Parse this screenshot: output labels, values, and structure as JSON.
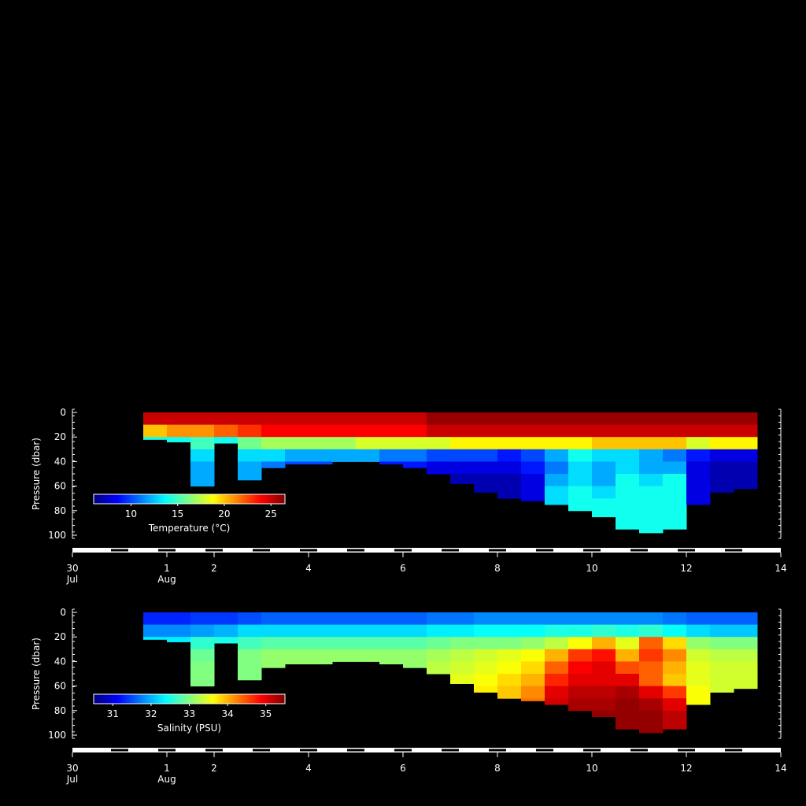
{
  "chart_data": [
    {
      "type": "section",
      "ylabel": "Pressure (dbar)",
      "colorbar_label": "Temperature (°C)",
      "xlim": [
        0,
        15
      ],
      "ylim": [
        0,
        100
      ],
      "clim": [
        6,
        26.5
      ],
      "xticks": [
        {
          "value": 0,
          "label": "30 Jul"
        },
        {
          "value": 2,
          "label": "1 Aug"
        },
        {
          "value": 3,
          "label": "2"
        },
        {
          "value": 5,
          "label": "4"
        },
        {
          "value": 7,
          "label": "6"
        },
        {
          "value": 9,
          "label": "8"
        },
        {
          "value": 11,
          "label": "10"
        },
        {
          "value": 13,
          "label": "12"
        },
        {
          "value": 15,
          "label": "14"
        }
      ],
      "yticks": [
        0,
        20,
        40,
        60,
        80,
        100
      ],
      "cticks": [
        10,
        15,
        20,
        25
      ],
      "x": [
        1.75,
        2.25,
        2.75,
        3.25,
        3.75,
        4.25,
        4.75,
        5.25,
        5.75,
        6.25,
        6.75,
        7.25,
        7.75,
        8.25,
        8.75,
        9.25,
        9.75,
        10.25,
        10.75,
        11.25,
        11.75,
        12.25,
        12.75,
        13.25,
        13.75,
        14.25
      ],
      "bottom": [
        22,
        24,
        60,
        25,
        55,
        45,
        42,
        42,
        40,
        40,
        42,
        45,
        50,
        58,
        65,
        70,
        72,
        75,
        80,
        85,
        95,
        98,
        95,
        75,
        65,
        62
      ],
      "depths": [
        0,
        10,
        20,
        30,
        40,
        50,
        60,
        70,
        80,
        90
      ],
      "values": [
        [
          25,
          20,
          14,
          null,
          null,
          null,
          null,
          null,
          null,
          null
        ],
        [
          25,
          21,
          14,
          null,
          null,
          null,
          null,
          null,
          null,
          null
        ],
        [
          25,
          21,
          15,
          13,
          12,
          12,
          null,
          null,
          null,
          null
        ],
        [
          25,
          22,
          14,
          null,
          null,
          null,
          null,
          null,
          null,
          null
        ],
        [
          25,
          23,
          16,
          13,
          12,
          12,
          null,
          null,
          null,
          null
        ],
        [
          25,
          24,
          17,
          13,
          11,
          null,
          null,
          null,
          null,
          null
        ],
        [
          25,
          24,
          17,
          12,
          10,
          null,
          null,
          null,
          null,
          null
        ],
        [
          25,
          24,
          17,
          12,
          10,
          null,
          null,
          null,
          null,
          null
        ],
        [
          25,
          24,
          17,
          12,
          null,
          null,
          null,
          null,
          null,
          null
        ],
        [
          25,
          24,
          18,
          12,
          null,
          null,
          null,
          null,
          null,
          null
        ],
        [
          25,
          24,
          18,
          11,
          9,
          null,
          null,
          null,
          null,
          null
        ],
        [
          25,
          24,
          18,
          11,
          9,
          null,
          null,
          null,
          null,
          null
        ],
        [
          26,
          25,
          18,
          10,
          8,
          null,
          null,
          null,
          null,
          null
        ],
        [
          26,
          25,
          19,
          10,
          8,
          7,
          null,
          null,
          null,
          null
        ],
        [
          26,
          25,
          19,
          10,
          8,
          7,
          7,
          null,
          null,
          null
        ],
        [
          26,
          25,
          19,
          9,
          8,
          7,
          7,
          null,
          null,
          null
        ],
        [
          26,
          25,
          19,
          10,
          9,
          8,
          8,
          8,
          null,
          null
        ],
        [
          26,
          25,
          19,
          12,
          11,
          12,
          13,
          13,
          null,
          null
        ],
        [
          26,
          25,
          19,
          14,
          13,
          13,
          14,
          14,
          null,
          null
        ],
        [
          26,
          25,
          20,
          13,
          12,
          12,
          13,
          14,
          14,
          null
        ],
        [
          26,
          25,
          20,
          13,
          13,
          14,
          14,
          14,
          14,
          14
        ],
        [
          26,
          25,
          20,
          12,
          12,
          13,
          14,
          14,
          14,
          14
        ],
        [
          26,
          25,
          20,
          11,
          12,
          14,
          14,
          14,
          14,
          14
        ],
        [
          26,
          25,
          18,
          9,
          8,
          8,
          8,
          8,
          null,
          null
        ],
        [
          26,
          25,
          19,
          8,
          7,
          7,
          7,
          null,
          null,
          null
        ],
        [
          26,
          25,
          19,
          8,
          7,
          7,
          7,
          null,
          null,
          null
        ]
      ]
    },
    {
      "type": "section",
      "ylabel": "Pressure (dbar)",
      "colorbar_label": "Salinity (PSU)",
      "xlim": [
        0,
        15
      ],
      "ylim": [
        0,
        100
      ],
      "clim": [
        30.5,
        35.5
      ],
      "xticks": [
        {
          "value": 0,
          "label": "30 Jul"
        },
        {
          "value": 2,
          "label": "1 Aug"
        },
        {
          "value": 3,
          "label": "2"
        },
        {
          "value": 5,
          "label": "4"
        },
        {
          "value": 7,
          "label": "6"
        },
        {
          "value": 9,
          "label": "8"
        },
        {
          "value": 11,
          "label": "10"
        },
        {
          "value": 13,
          "label": "12"
        },
        {
          "value": 15,
          "label": "14"
        }
      ],
      "yticks": [
        0,
        20,
        40,
        60,
        80,
        100
      ],
      "cticks": [
        31,
        32,
        33,
        34,
        35
      ],
      "x": [
        1.75,
        2.25,
        2.75,
        3.25,
        3.75,
        4.25,
        4.75,
        5.25,
        5.75,
        6.25,
        6.75,
        7.25,
        7.75,
        8.25,
        8.75,
        9.25,
        9.75,
        10.25,
        10.75,
        11.25,
        11.75,
        12.25,
        12.75,
        13.25,
        13.75,
        14.25
      ],
      "bottom": [
        22,
        24,
        60,
        25,
        55,
        45,
        42,
        42,
        40,
        40,
        42,
        45,
        50,
        58,
        65,
        70,
        72,
        75,
        80,
        85,
        95,
        98,
        95,
        75,
        65,
        62
      ],
      "depths": [
        0,
        10,
        20,
        30,
        40,
        50,
        60,
        70,
        80,
        90
      ],
      "values": [
        [
          31.3,
          31.8,
          32.3,
          null,
          null,
          null,
          null,
          null,
          null,
          null
        ],
        [
          31.3,
          31.8,
          32.3,
          null,
          null,
          null,
          null,
          null,
          null,
          null
        ],
        [
          31.4,
          31.9,
          32.6,
          32.9,
          33.0,
          33.0,
          null,
          null,
          null,
          null
        ],
        [
          31.4,
          32.0,
          32.5,
          null,
          null,
          null,
          null,
          null,
          null,
          null
        ],
        [
          31.5,
          32.2,
          32.7,
          33.0,
          33.0,
          33.0,
          null,
          null,
          null,
          null
        ],
        [
          31.6,
          32.2,
          32.8,
          33.1,
          33.1,
          null,
          null,
          null,
          null,
          null
        ],
        [
          31.6,
          32.2,
          32.8,
          33.1,
          33.1,
          null,
          null,
          null,
          null,
          null
        ],
        [
          31.6,
          32.2,
          32.8,
          33.1,
          33.1,
          null,
          null,
          null,
          null,
          null
        ],
        [
          31.6,
          32.2,
          32.8,
          33.1,
          null,
          null,
          null,
          null,
          null,
          null
        ],
        [
          31.6,
          32.2,
          32.8,
          33.1,
          null,
          null,
          null,
          null,
          null,
          null
        ],
        [
          31.6,
          32.2,
          32.8,
          33.1,
          33.1,
          null,
          null,
          null,
          null,
          null
        ],
        [
          31.6,
          32.2,
          32.8,
          33.1,
          33.1,
          null,
          null,
          null,
          null,
          null
        ],
        [
          31.7,
          32.3,
          32.9,
          33.2,
          33.3,
          null,
          null,
          null,
          null,
          null
        ],
        [
          31.7,
          32.3,
          33.0,
          33.3,
          33.4,
          33.5,
          null,
          null,
          null,
          null
        ],
        [
          31.8,
          32.4,
          33.0,
          33.4,
          33.5,
          33.6,
          33.7,
          null,
          null,
          null
        ],
        [
          31.8,
          32.4,
          33.0,
          33.5,
          33.6,
          33.8,
          33.9,
          null,
          null,
          null
        ],
        [
          31.8,
          32.4,
          33.1,
          33.6,
          33.8,
          34.0,
          34.2,
          34.3,
          null,
          null
        ],
        [
          31.8,
          32.5,
          33.3,
          34.0,
          34.4,
          34.7,
          35.0,
          35.1,
          null,
          null
        ],
        [
          31.8,
          32.5,
          33.6,
          34.6,
          34.9,
          35.0,
          35.2,
          35.3,
          null,
          null
        ],
        [
          31.8,
          32.6,
          34.0,
          34.8,
          35.0,
          35.0,
          35.2,
          35.3,
          35.4,
          null
        ],
        [
          31.8,
          32.5,
          33.5,
          34.0,
          34.5,
          35.0,
          35.3,
          35.4,
          35.4,
          35.4
        ],
        [
          31.8,
          32.6,
          34.4,
          34.6,
          34.4,
          34.4,
          35.0,
          35.3,
          35.4,
          35.4
        ],
        [
          31.7,
          32.4,
          33.8,
          34.2,
          34.0,
          33.9,
          34.6,
          35.0,
          35.2,
          35.2
        ],
        [
          31.6,
          32.2,
          33.1,
          33.4,
          33.5,
          33.5,
          33.6,
          33.6,
          null,
          null
        ],
        [
          31.6,
          32.1,
          33.0,
          33.3,
          33.4,
          33.4,
          33.4,
          null,
          null,
          null
        ],
        [
          31.6,
          32.1,
          33.0,
          33.3,
          33.4,
          33.4,
          33.4,
          null,
          null,
          null
        ]
      ]
    }
  ]
}
